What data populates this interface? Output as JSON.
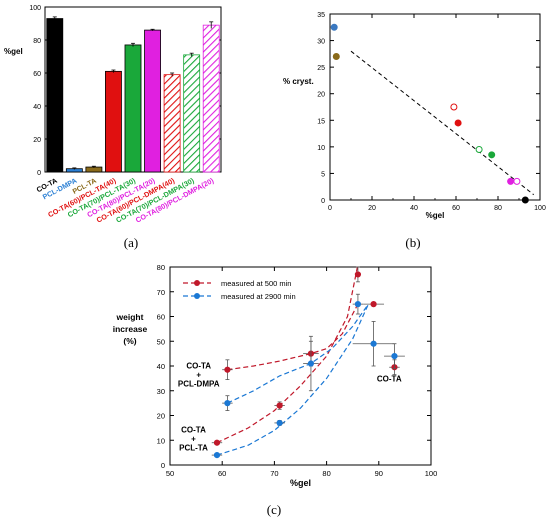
{
  "panel_labels": {
    "a": "(a)",
    "b": "(b)",
    "c": "(c)"
  },
  "chart_data": [
    {
      "type": "bar",
      "panel": "a",
      "ylabel": "%gel",
      "ylim": [
        0,
        100
      ],
      "yticks": [
        0,
        20,
        40,
        60,
        80,
        100
      ],
      "categories": [
        {
          "label": "CO-TA",
          "value": 93,
          "err": 1.0,
          "color": "#000000",
          "fill": "solid"
        },
        {
          "label": "PCL-DMPA",
          "value": 2,
          "err": 0.5,
          "color": "#2a7fd4",
          "fill": "solid"
        },
        {
          "label": "PCL-TA",
          "value": 3,
          "err": 0.5,
          "color": "#8a6a1a",
          "fill": "solid"
        },
        {
          "label": "CO-TA(60)/PCL-TA(40)",
          "value": 61,
          "err": 0.8,
          "color": "#e01010",
          "fill": "solid"
        },
        {
          "label": "CO-TA(70)/PCL-TA(30)",
          "value": 77,
          "err": 1.0,
          "color": "#1aa83a",
          "fill": "solid"
        },
        {
          "label": "CO-TA(80)/PCL-TA(20)",
          "value": 86,
          "err": 0.5,
          "color": "#e020e0",
          "fill": "solid"
        },
        {
          "label": "CO-TA(60)/PCL-DMPA(40)",
          "value": 59,
          "err": 1.0,
          "color": "#e01010",
          "fill": "hatch"
        },
        {
          "label": "CO-TA(70)/PCL-DMPA(30)",
          "value": 71,
          "err": 1.0,
          "color": "#1aa83a",
          "fill": "hatch"
        },
        {
          "label": "CO-TA(80)/PCL-DMPA(20)",
          "value": 89,
          "err": 2.0,
          "color": "#e020e0",
          "fill": "hatch"
        }
      ]
    },
    {
      "type": "scatter",
      "panel": "b",
      "xlabel": "%gel",
      "ylabel": "% cryst.",
      "xlim": [
        0,
        100
      ],
      "ylim": [
        0,
        35
      ],
      "xticks": [
        0,
        20,
        40,
        60,
        80,
        100
      ],
      "yticks": [
        0,
        5,
        10,
        15,
        20,
        25,
        30,
        35
      ],
      "points": [
        {
          "x": 2,
          "y": 32.5,
          "color": "#3a78c0",
          "filled": true
        },
        {
          "x": 3,
          "y": 27,
          "color": "#8a6a1a",
          "filled": true
        },
        {
          "x": 59,
          "y": 17.5,
          "color": "#e01010",
          "filled": false
        },
        {
          "x": 61,
          "y": 14.5,
          "color": "#e01010",
          "filled": true
        },
        {
          "x": 71,
          "y": 9.5,
          "color": "#1aa83a",
          "filled": false
        },
        {
          "x": 77,
          "y": 8.5,
          "color": "#1aa83a",
          "filled": true
        },
        {
          "x": 86,
          "y": 3.5,
          "color": "#e020e0",
          "filled": true
        },
        {
          "x": 89,
          "y": 3.5,
          "color": "#e020e0",
          "filled": false
        },
        {
          "x": 93,
          "y": 0,
          "color": "#000000",
          "filled": true
        }
      ],
      "trend": {
        "from": [
          10,
          28
        ],
        "to": [
          97,
          1
        ]
      }
    },
    {
      "type": "scatter",
      "panel": "c",
      "xlabel": "%gel",
      "ylabel": "weight increase (%)",
      "ylabel_lines": [
        "weight",
        "increase",
        "(%)"
      ],
      "xlim": [
        50,
        100
      ],
      "ylim": [
        0,
        80
      ],
      "xticks": [
        50,
        60,
        70,
        80,
        90,
        100
      ],
      "yticks": [
        0,
        10,
        20,
        30,
        40,
        50,
        60,
        70,
        80
      ],
      "series": [
        {
          "name": "measured at 500 min",
          "color": "#c0182a",
          "points": [
            {
              "x": 59,
              "y": 9,
              "xerr": 1,
              "yerr": 0.5
            },
            {
              "x": 61,
              "y": 38.5,
              "xerr": 1,
              "yerr": 4
            },
            {
              "x": 71,
              "y": 24,
              "xerr": 1,
              "yerr": 1.5
            },
            {
              "x": 77,
              "y": 45,
              "xerr": 1.5,
              "yerr": 5
            },
            {
              "x": 86,
              "y": 77,
              "xerr": 0.5,
              "yerr": 3
            },
            {
              "x": 89,
              "y": 65,
              "xerr": 2,
              "yerr": 0.5
            },
            {
              "x": 93,
              "y": 39.5,
              "xerr": 1,
              "yerr": 3
            }
          ],
          "fit": [
            [
              59,
              9
            ],
            [
              65,
              15
            ],
            [
              70,
              22
            ],
            [
              75,
              32
            ],
            [
              80,
              44
            ],
            [
              84,
              60
            ],
            [
              86,
              81
            ]
          ],
          "fit2": [
            [
              61,
              38.5
            ],
            [
              66,
              40
            ],
            [
              71,
              42
            ],
            [
              77,
              45
            ],
            [
              80,
              47
            ],
            [
              83,
              53
            ],
            [
              86,
              65
            ]
          ]
        },
        {
          "name": "measured at 2900 min",
          "color": "#1b78d4",
          "points": [
            {
              "x": 59,
              "y": 4,
              "xerr": 1,
              "yerr": 0.5
            },
            {
              "x": 61,
              "y": 25,
              "xerr": 1,
              "yerr": 3
            },
            {
              "x": 71,
              "y": 17,
              "xerr": 1,
              "yerr": 1
            },
            {
              "x": 77,
              "y": 41,
              "xerr": 1.5,
              "yerr": 11
            },
            {
              "x": 86,
              "y": 65,
              "xerr": 1,
              "yerr": 4
            },
            {
              "x": 89,
              "y": 49,
              "xerr": 4,
              "yerr": 9
            },
            {
              "x": 93,
              "y": 44,
              "xerr": 2,
              "yerr": 5
            }
          ],
          "fit": [
            [
              59,
              4
            ],
            [
              65,
              8
            ],
            [
              70,
              14
            ],
            [
              75,
              23
            ],
            [
              80,
              35
            ],
            [
              85,
              51
            ],
            [
              88,
              65
            ]
          ],
          "fit2": [
            [
              61,
              25
            ],
            [
              66,
              30
            ],
            [
              71,
              36
            ],
            [
              77,
              41
            ],
            [
              81,
              47
            ],
            [
              85,
              56
            ],
            [
              88,
              65
            ]
          ]
        }
      ],
      "annotations": [
        {
          "lines": [
            "CO-TA",
            "+",
            "PCL-DMPA"
          ],
          "x": 55.5,
          "y": 33
        },
        {
          "lines": [
            "CO-TA",
            "+",
            "PCL-TA"
          ],
          "x": 54.5,
          "y": 7
        },
        {
          "lines": [
            "CO-TA"
          ],
          "x": 92,
          "y": 35
        }
      ]
    }
  ]
}
